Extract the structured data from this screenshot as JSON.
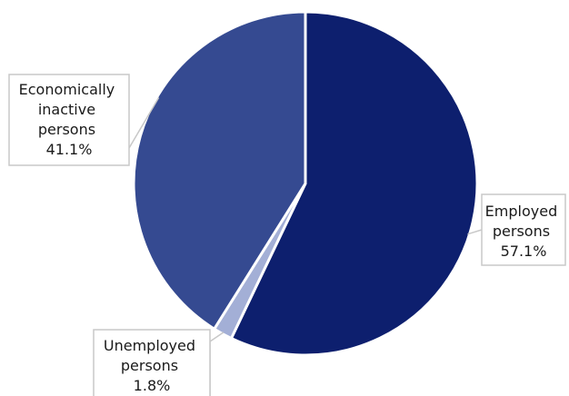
{
  "chart_data": {
    "type": "pie",
    "title": "",
    "slices": [
      {
        "label_lines": [
          "Employed",
          "persons",
          "57.1%"
        ],
        "value": 57.1,
        "color": "#0d1f6e"
      },
      {
        "label_lines": [
          "Unemployed",
          "persons",
          "1.8%"
        ],
        "value": 1.8,
        "color": "#a3afd6"
      },
      {
        "label_lines": [
          "Economically",
          "inactive",
          "persons",
          "41.1%"
        ],
        "value": 41.1,
        "color": "#354a91"
      }
    ],
    "start_angle_deg": 0,
    "direction": "clockwise",
    "legend": "none",
    "data_labels": "callouts"
  }
}
